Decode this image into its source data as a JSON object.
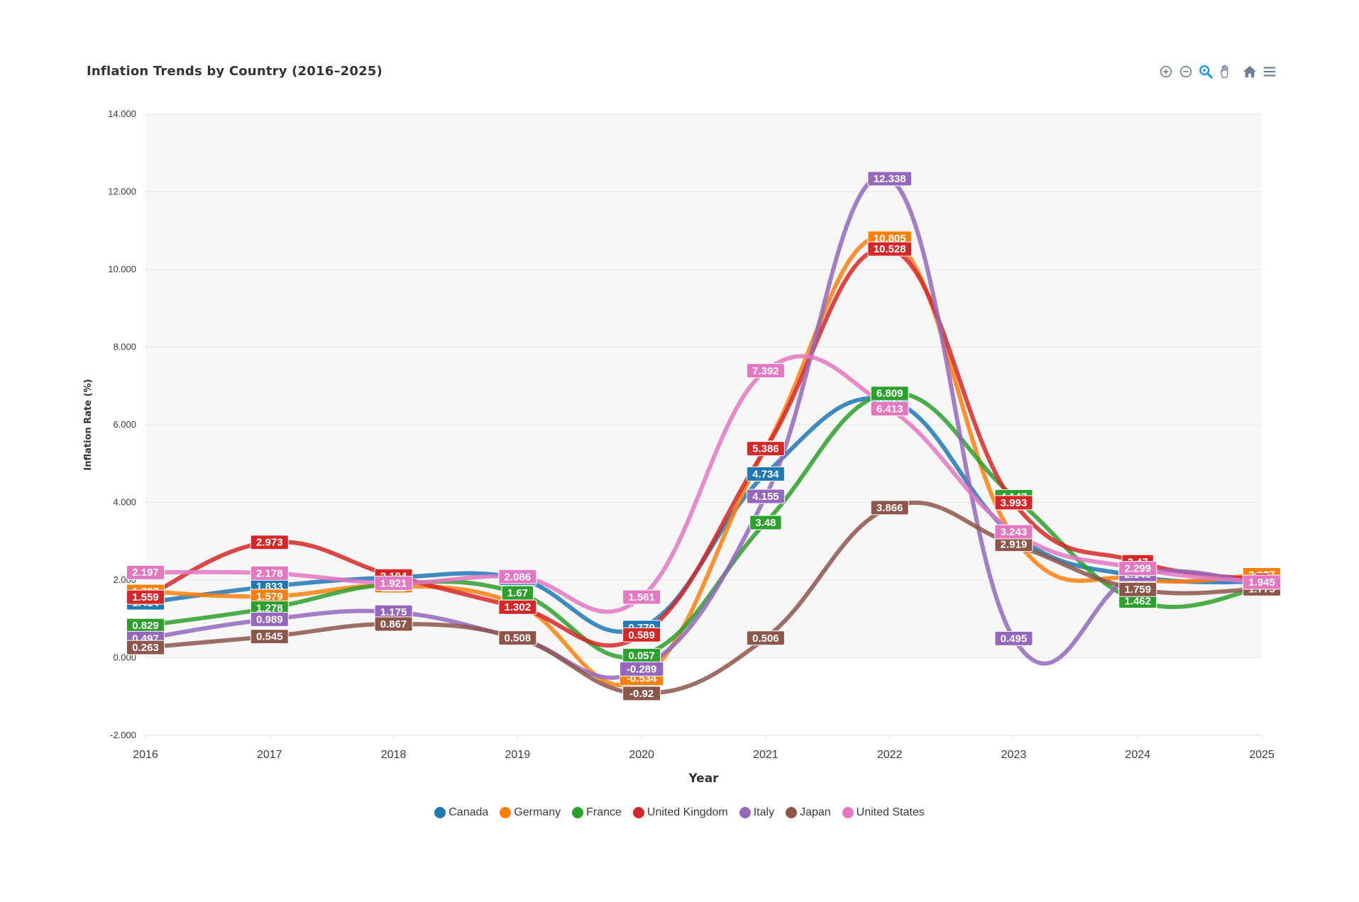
{
  "toolbar": {
    "icons": [
      "zoom-in-icon",
      "zoom-out-icon",
      "selection-zoom-icon",
      "pan-hand-icon",
      "reset-home-icon",
      "menu-icon"
    ],
    "active_color": "#008ffb",
    "inactive_color": "#6e8192"
  },
  "chart_data": {
    "type": "line",
    "curve": "smooth",
    "title": "Inflation Trends by Country (2016–2025)",
    "xlabel": "Year",
    "ylabel": "Inflation Rate (%)",
    "x": [
      "2016",
      "2017",
      "2018",
      "2019",
      "2020",
      "2021",
      "2022",
      "2023",
      "2024",
      "2025"
    ],
    "ylim": [
      -2,
      14
    ],
    "yticks": [
      -2,
      0,
      2,
      4,
      6,
      8,
      10,
      12,
      14
    ],
    "ytick_labels": [
      "-2.000",
      "0.000",
      "2.000",
      "4.000",
      "6.000",
      "8.000",
      "10.000",
      "12.000",
      "14.000"
    ],
    "grid": "horizontal, alternating band fill",
    "legend": "bottom-center",
    "data_labels": true,
    "series": [
      {
        "name": "Canada",
        "color": "#1f77b4",
        "values": [
          1.414,
          1.833,
          2.064,
          2.046,
          0.779,
          4.734,
          6.627,
          3.16,
          2.1,
          1.95
        ]
      },
      {
        "name": "Germany",
        "color": "#ff7f0e",
        "values": [
          1.707,
          1.579,
          1.854,
          1.38,
          -0.534,
          5.4,
          10.805,
          3.11,
          2.03,
          2.137
        ]
      },
      {
        "name": "France",
        "color": "#2ca02c",
        "values": [
          0.829,
          1.278,
          1.9,
          1.67,
          0.057,
          3.48,
          6.809,
          4.147,
          1.462,
          1.8
        ]
      },
      {
        "name": "United Kingdom",
        "color": "#d62728",
        "values": [
          1.559,
          2.973,
          2.104,
          1.302,
          0.589,
          5.386,
          10.528,
          3.993,
          2.47,
          2.0
        ]
      },
      {
        "name": "Italy",
        "color": "#9467bd",
        "values": [
          0.497,
          0.989,
          1.175,
          0.508,
          -0.289,
          4.155,
          12.338,
          0.495,
          2.146,
          1.9
        ]
      },
      {
        "name": "Japan",
        "color": "#8c564b",
        "values": [
          0.263,
          0.545,
          0.867,
          0.508,
          -0.92,
          0.506,
          3.866,
          2.919,
          1.759,
          1.775
        ]
      },
      {
        "name": "United States",
        "color": "#e377c2",
        "values": [
          2.197,
          2.178,
          1.921,
          2.086,
          1.561,
          7.392,
          6.413,
          3.243,
          2.299,
          1.945
        ]
      }
    ]
  }
}
